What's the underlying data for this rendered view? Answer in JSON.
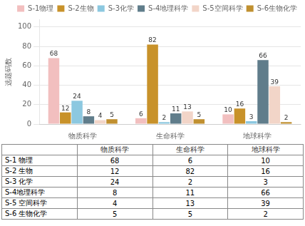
{
  "chart_data": {
    "type": "bar",
    "categories": [
      "物质科学",
      "生命科学",
      "地球科学"
    ],
    "series": [
      {
        "name": "S-1物理",
        "values": [
          68,
          6,
          10
        ],
        "color": "#f2bfbf"
      },
      {
        "name": "S-2生物",
        "values": [
          12,
          82,
          16
        ],
        "color": "#c8922a"
      },
      {
        "name": "S-3化学",
        "values": [
          24,
          2,
          3
        ],
        "color": "#8cc8e0"
      },
      {
        "name": "S-4地理科学",
        "values": [
          8,
          11,
          66
        ],
        "color": "#607d8b"
      },
      {
        "name": "S-5空间科学",
        "values": [
          4,
          13,
          39
        ],
        "color": "#f2d5c8"
      },
      {
        "name": "S-6生物化学",
        "values": [
          5,
          5,
          2
        ],
        "color": "#c09030"
      }
    ],
    "ylabel": "选题码数",
    "ylim": [
      0,
      108
    ],
    "yticks": [
      0,
      20,
      40,
      60,
      80,
      100
    ],
    "grid": true,
    "legend": "upper right",
    "data_labels": true,
    "table": {
      "columns": [
        "物质科学",
        "生命科学",
        "地球科学"
      ],
      "rows": [
        {
          "label": "S-1 物理",
          "values": [
            68,
            6,
            10
          ]
        },
        {
          "label": "S-2 生物",
          "values": [
            12,
            82,
            16
          ]
        },
        {
          "label": "S-3 化学",
          "values": [
            24,
            2,
            3
          ]
        },
        {
          "label": "S-4地理科学",
          "values": [
            8,
            11,
            66
          ]
        },
        {
          "label": "S-5 空间科学",
          "values": [
            4,
            13,
            39
          ]
        },
        {
          "label": "S-6 生物化学",
          "values": [
            5,
            5,
            2
          ]
        }
      ]
    }
  }
}
